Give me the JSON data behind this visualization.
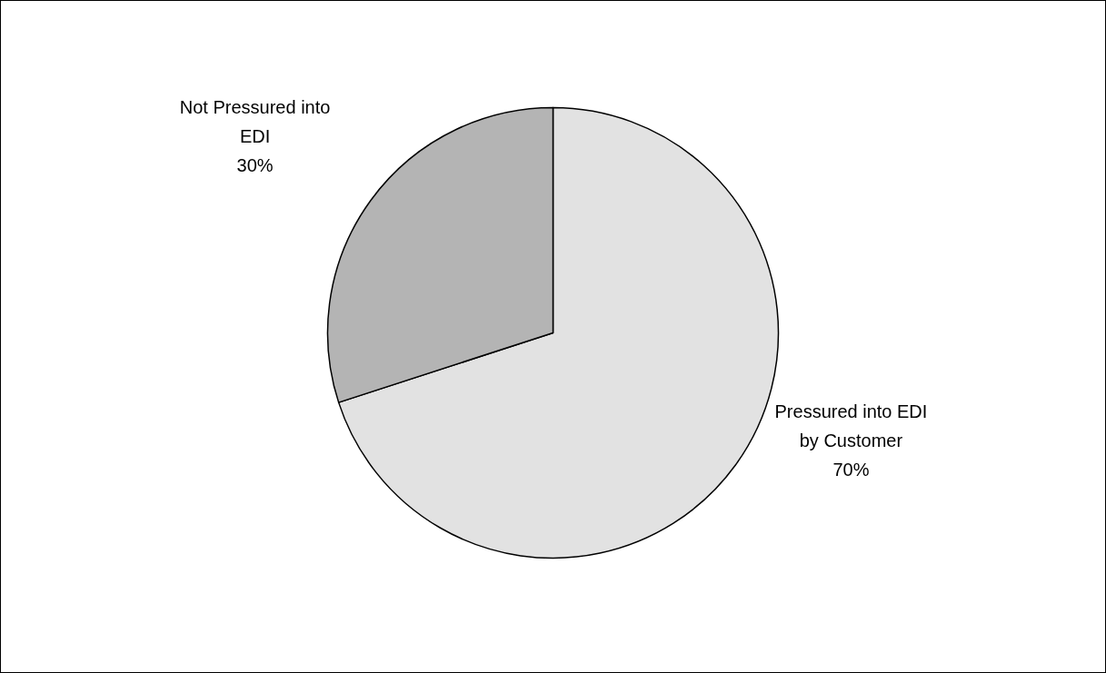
{
  "chart_data": {
    "type": "pie",
    "categories": [
      "Pressured into EDI by Customer",
      "Not Pressured into EDI"
    ],
    "values": [
      70,
      30
    ],
    "colors": [
      "#e2e2e2",
      "#b4b4b4"
    ],
    "value_labels": [
      "70%",
      "30%"
    ]
  }
}
